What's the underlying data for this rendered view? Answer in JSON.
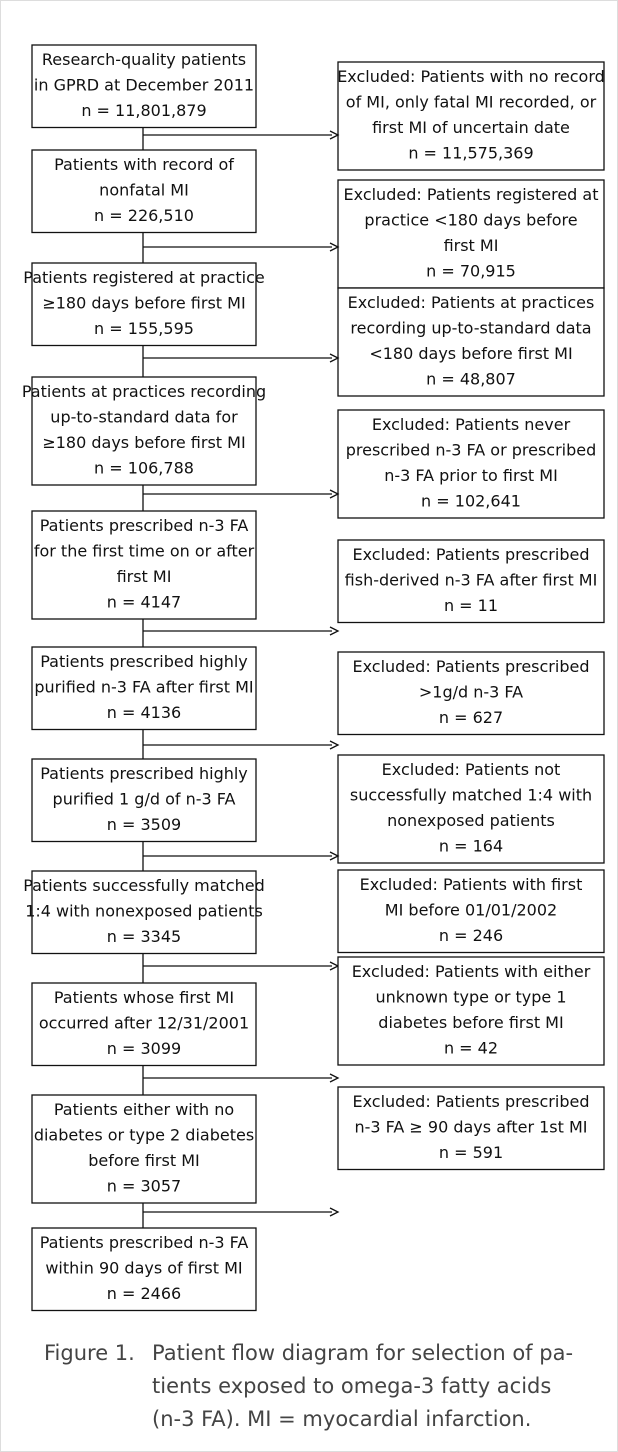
{
  "steps": [
    {
      "lines": [
        "Research-quality patients",
        "in GPRD at December 2011",
        "n = 11,801,879"
      ]
    },
    {
      "lines": [
        "Patients with record of",
        "nonfatal MI",
        "n = 226,510"
      ]
    },
    {
      "lines": [
        "Patients registered at practice",
        "≥180 days before first MI",
        "n = 155,595"
      ]
    },
    {
      "lines": [
        "Patients at practices recording",
        "up-to-standard data for",
        "≥180 days before first MI",
        "n = 106,788"
      ]
    },
    {
      "lines": [
        "Patients prescribed n-3 FA",
        "for the first time on or after",
        "first MI",
        "n = 4147"
      ]
    },
    {
      "lines": [
        "Patients prescribed highly",
        "purified  n-3 FA after first MI",
        "n = 4136"
      ]
    },
    {
      "lines": [
        "Patients prescribed highly",
        "purified 1 g/d of n-3 FA",
        "n = 3509"
      ]
    },
    {
      "lines": [
        "Patients successfully matched",
        "1:4 with nonexposed patients",
        "n = 3345"
      ]
    },
    {
      "lines": [
        "Patients whose first MI",
        "occurred after 12/31/2001",
        "n = 3099"
      ]
    },
    {
      "lines": [
        "Patients either with no",
        "diabetes or type 2 diabetes",
        "before first MI",
        "n = 3057"
      ]
    },
    {
      "lines": [
        "Patients prescribed n-3 FA",
        "within  90 days of first MI",
        "n = 2466"
      ]
    }
  ],
  "exclusions": [
    {
      "lines": [
        "Excluded: Patients with no record",
        "of MI, only fatal MI recorded, or",
        "first MI of uncertain date",
        "n = 11,575,369"
      ]
    },
    {
      "lines": [
        "Excluded: Patients registered at",
        "practice <180 days before",
        "first MI",
        "n = 70,915"
      ]
    },
    {
      "lines": [
        "Excluded: Patients at practices",
        "recording up-to-standard data",
        "<180 days before first MI",
        "n = 48,807"
      ]
    },
    {
      "lines": [
        "Excluded: Patients never",
        "prescribed n-3 FA or prescribed",
        "n-3 FA prior to first MI",
        "n = 102,641"
      ]
    },
    {
      "lines": [
        "Excluded: Patients prescribed",
        "fish-derived n-3 FA after first MI",
        "n = 11"
      ]
    },
    {
      "lines": [
        "Excluded: Patients prescribed",
        ">1g/d n-3 FA",
        "n = 627"
      ]
    },
    {
      "lines": [
        "Excluded: Patients not",
        "successfully matched 1:4 with",
        "nonexposed patients",
        "n = 164"
      ]
    },
    {
      "lines": [
        "Excluded: Patients with first",
        "MI before 01/01/2002",
        "n = 246"
      ]
    },
    {
      "lines": [
        "Excluded: Patients with either",
        "unknown type or type 1",
        "diabetes before first MI",
        "n = 42"
      ]
    },
    {
      "lines": [
        "Excluded: Patients prescribed",
        "n-3 FA ≥ 90 days after 1st MI",
        "n = 591"
      ]
    }
  ],
  "caption": {
    "label": "Figure 1.",
    "lines": [
      "Patient flow diagram for selection of pa-",
      "tients exposed to omega-3 fatty acids",
      "(n-3 FA). MI = myocardial infarction."
    ]
  }
}
